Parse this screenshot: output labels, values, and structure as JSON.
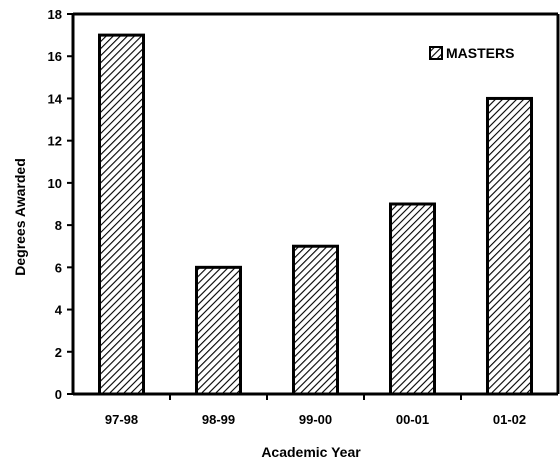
{
  "chart_data": {
    "type": "bar",
    "categories": [
      "97-98",
      "98-99",
      "99-00",
      "00-01",
      "01-02"
    ],
    "series": [
      {
        "name": "MASTERS",
        "values": [
          17,
          6,
          7,
          9,
          14
        ]
      }
    ],
    "xlabel": "Academic Year",
    "ylabel": "Degrees Awarded",
    "ylim": [
      0,
      18
    ],
    "yticks": [
      0,
      2,
      4,
      6,
      8,
      10,
      12,
      14,
      16,
      18
    ],
    "grid": false,
    "legend_position": "top-right",
    "bar_pattern": "diagonal-hatch",
    "colors": {
      "bar_fill": "#ffffff",
      "hatch": "#000000",
      "axis": "#000000"
    }
  }
}
